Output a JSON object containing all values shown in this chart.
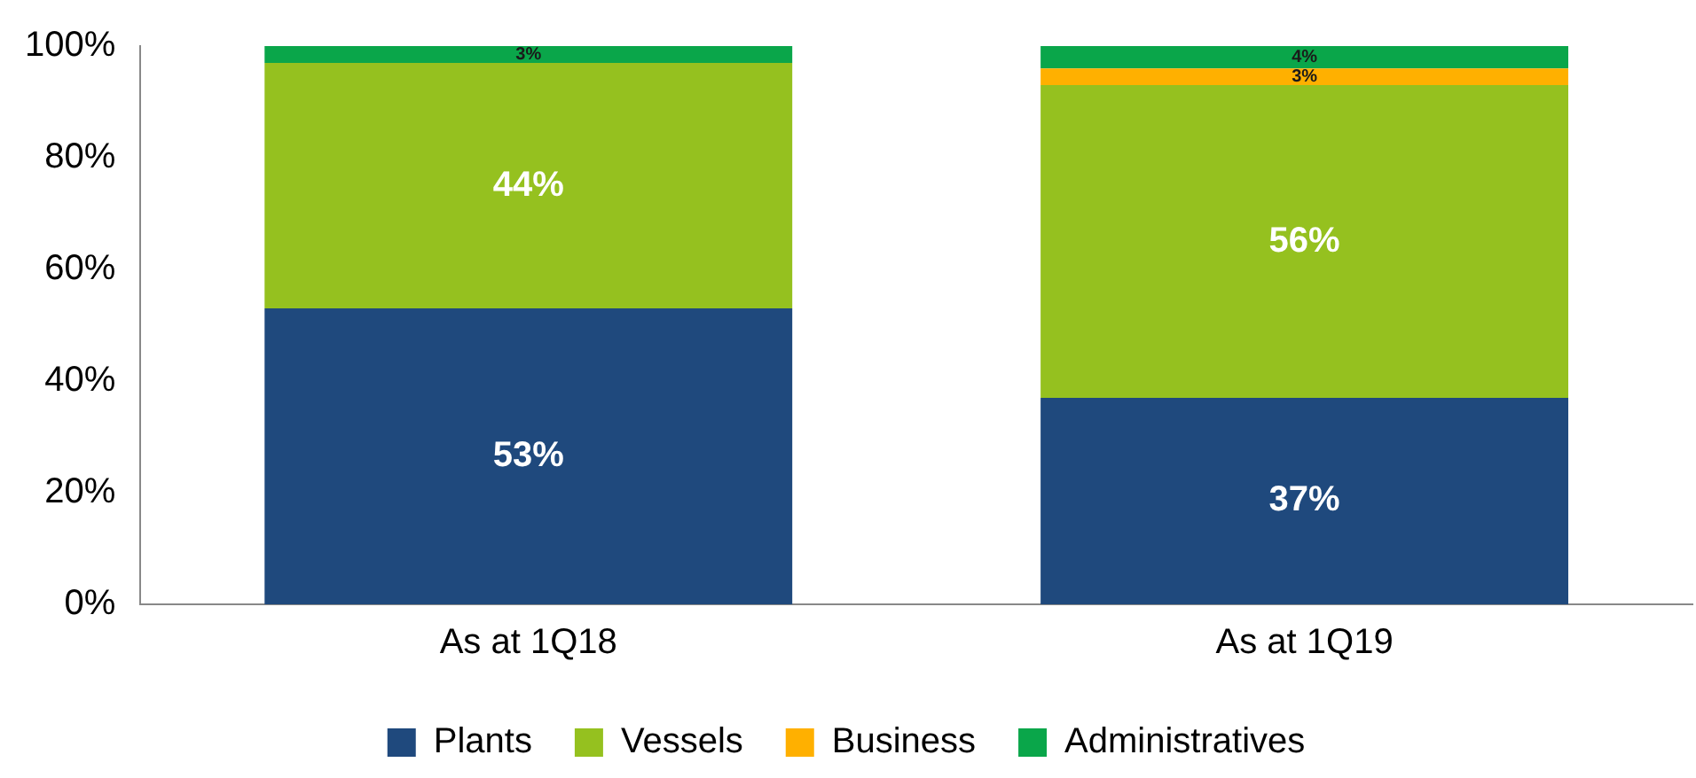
{
  "chart_data": {
    "type": "bar",
    "stacked": true,
    "categories": [
      "As at 1Q18",
      "As at 1Q19"
    ],
    "series": [
      {
        "name": "Plants",
        "color": "#1f497d",
        "values": [
          53,
          37
        ],
        "value_labels": [
          "53%",
          "37%"
        ]
      },
      {
        "name": "Vessels",
        "color": "#95c11f",
        "values": [
          44,
          56
        ],
        "value_labels": [
          "44%",
          "56%"
        ]
      },
      {
        "name": "Business",
        "color": "#ffb000",
        "values": [
          0,
          3
        ],
        "value_labels": [
          null,
          "3%"
        ]
      },
      {
        "name": "Administratives",
        "color": "#0aa64a",
        "values": [
          3,
          4
        ],
        "value_labels": [
          "3%",
          "4%"
        ]
      }
    ],
    "ylim": [
      0,
      100
    ],
    "yticks": [
      {
        "value": 0,
        "label": "0%"
      },
      {
        "value": 20,
        "label": "20%"
      },
      {
        "value": 40,
        "label": "40%"
      },
      {
        "value": 60,
        "label": "60%"
      },
      {
        "value": 80,
        "label": "80%"
      },
      {
        "value": 100,
        "label": "100%"
      }
    ],
    "grid": false,
    "legend": "bottom"
  }
}
